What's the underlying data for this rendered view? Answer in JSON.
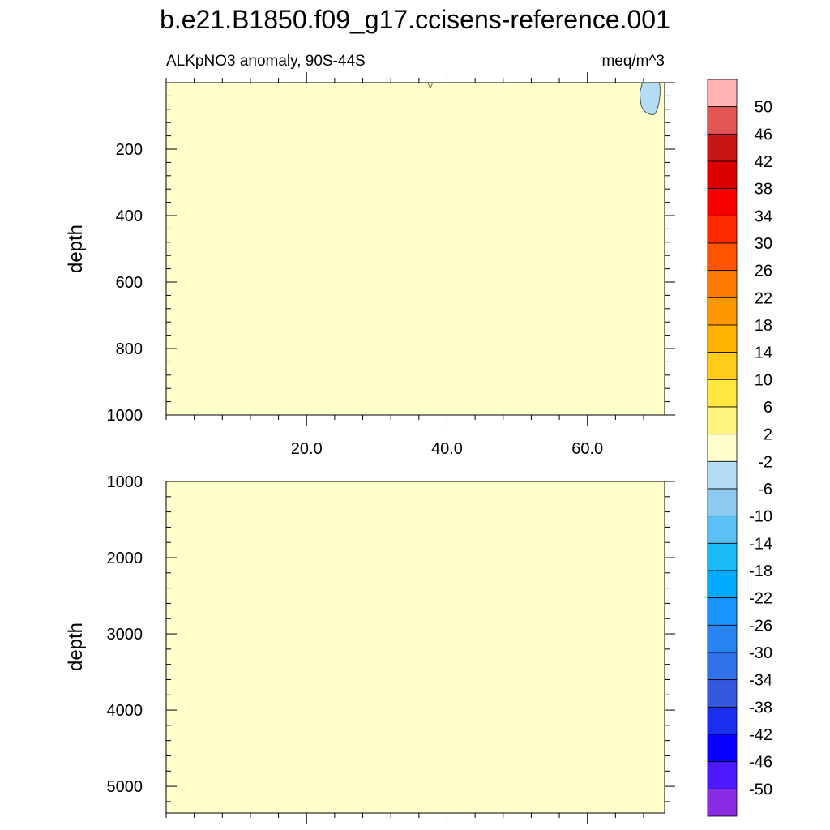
{
  "chart_data": {
    "type": "heatmap",
    "title": "b.e21.B1850.f09_g17.ccisens-reference.001",
    "subtitle_left": "ALKpNO3 anomaly, 90S-44S",
    "subtitle_right": "meq/m^3",
    "ylabel": "depth",
    "xlim": [
      0,
      71
    ],
    "x_ticks": [
      20,
      40,
      60
    ],
    "x_tick_labels": [
      "20.0",
      "40.0",
      "60.0"
    ],
    "panels": [
      {
        "id": "upper",
        "ylim": [
          0,
          1000
        ],
        "y_inverted": true,
        "y_ticks": [
          200,
          400,
          600,
          800,
          1000
        ],
        "y_tick_labels": [
          "200",
          "400",
          "600",
          "800",
          "1000"
        ],
        "background_level": "-2 to 2",
        "features": [
          {
            "kind": "blob",
            "level": "-6 to -2",
            "x_range": [
              67.6,
              69.8
            ],
            "depth_range": [
              0,
              95
            ]
          },
          {
            "kind": "notch",
            "level": "-2 to 2 contour",
            "x": 37.5,
            "depth_max": 25
          }
        ]
      },
      {
        "id": "lower",
        "ylim": [
          1000,
          5350
        ],
        "y_inverted": true,
        "y_ticks": [
          1000,
          2000,
          3000,
          4000,
          5000
        ],
        "y_tick_labels": [
          "1000",
          "2000",
          "3000",
          "4000",
          "5000"
        ],
        "background_level": "-2 to 2",
        "features": []
      }
    ],
    "colorbar": {
      "labels": [
        "50",
        "46",
        "42",
        "38",
        "34",
        "30",
        "26",
        "22",
        "18",
        "14",
        "10",
        "6",
        "2",
        "-2",
        "-6",
        "-10",
        "-14",
        "-18",
        "-22",
        "-26",
        "-30",
        "-34",
        "-38",
        "-42",
        "-46",
        "-50"
      ],
      "colors": [
        "#fdb3b3",
        "#e35656",
        "#c81515",
        "#dc0000",
        "#f90000",
        "#ff2a00",
        "#ff5500",
        "#ff7a00",
        "#ff9800",
        "#ffb200",
        "#ffcc1a",
        "#ffe640",
        "#fff480",
        "#ffffcc",
        "#b4dcf4",
        "#8ccbef",
        "#5bc0f3",
        "#19baf8",
        "#00aaff",
        "#1994ff",
        "#2884f0",
        "#3070e8",
        "#3459de",
        "#1a2ef0",
        "#0a00ff",
        "#4d1aff",
        "#8a2be2"
      ]
    }
  }
}
